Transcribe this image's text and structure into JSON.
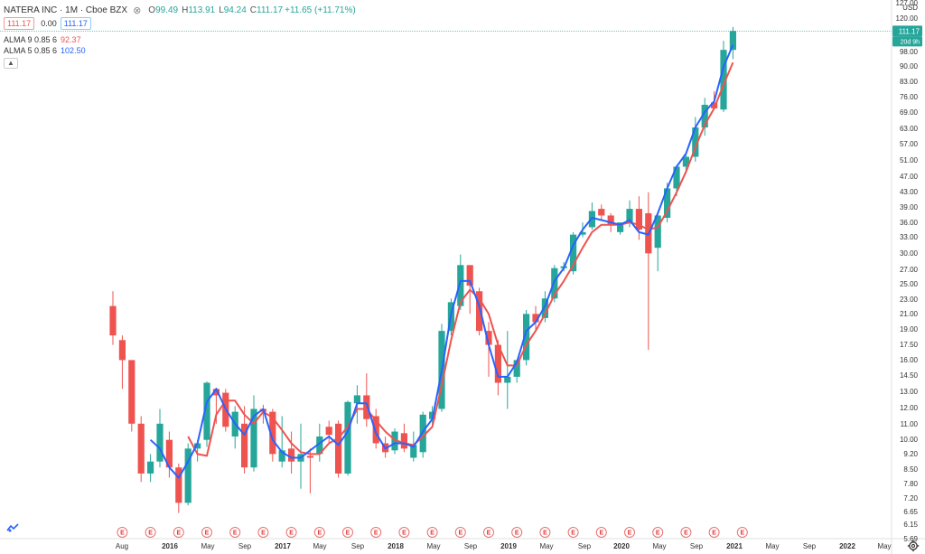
{
  "header": {
    "symbol_title": "NATERA INC · 1M · Cboe BZX",
    "bid": "111.17",
    "spread": "0.00",
    "ask": "111.17",
    "ohlc": [
      {
        "label": "O",
        "value": "99.49"
      },
      {
        "label": "H",
        "value": "113.91"
      },
      {
        "label": "L",
        "value": "94.24"
      },
      {
        "label": "C",
        "value": "111.17"
      },
      {
        "label": "",
        "value": "+11.65 (+11.71%)"
      }
    ]
  },
  "studies": [
    {
      "name": "ALMA 9 0.85 6",
      "value": "92.37",
      "color": "#ef5350"
    },
    {
      "name": "ALMA 5 0.85 6",
      "value": "102.50",
      "color": "#2962ff"
    }
  ],
  "price_axis": {
    "currency": "USD",
    "labels": [
      "127.00",
      "120.00",
      "110.00",
      "98.00",
      "90.00",
      "83.00",
      "76.00",
      "69.00",
      "63.00",
      "57.00",
      "51.00",
      "47.00",
      "43.00",
      "39.00",
      "36.00",
      "33.00",
      "30.00",
      "27.00",
      "25.00",
      "23.00",
      "21.00",
      "19.00",
      "17.50",
      "16.00",
      "14.50",
      "13.00",
      "12.00",
      "11.00",
      "10.00",
      "9.20",
      "8.50",
      "7.80",
      "7.20",
      "6.65",
      "6.15",
      "5.69"
    ],
    "last_price": "111.17",
    "countdown": "20d 9h"
  },
  "time_axis": {
    "labels": [
      "Aug",
      "2016",
      "May",
      "Sep",
      "2017",
      "May",
      "Sep",
      "2018",
      "May",
      "Sep",
      "2019",
      "May",
      "Sep",
      "2020",
      "May",
      "Sep",
      "2021",
      "May",
      "Sep",
      "2022",
      "May"
    ],
    "bold": [
      "2016",
      "2017",
      "2018",
      "2019",
      "2020",
      "2021",
      "2022"
    ]
  },
  "earnings_marker": "E",
  "colors": {
    "up": "#26a69a",
    "down": "#ef5350",
    "alma9": "#ef5350",
    "alma5": "#2962ff",
    "wick": "#666"
  },
  "chart_data": {
    "type": "candlestick",
    "scale": "log",
    "interval": "1M",
    "x_labels": [
      "2015-07",
      "2015-08",
      "2015-09",
      "2015-10",
      "2015-11",
      "2015-12",
      "2016-01",
      "2016-02",
      "2016-03",
      "2016-04",
      "2016-05",
      "2016-06",
      "2016-07",
      "2016-08",
      "2016-09",
      "2016-10",
      "2016-11",
      "2016-12",
      "2017-01",
      "2017-02",
      "2017-03",
      "2017-04",
      "2017-05",
      "2017-06",
      "2017-07",
      "2017-08",
      "2017-09",
      "2017-10",
      "2017-11",
      "2017-12",
      "2018-01",
      "2018-02",
      "2018-03",
      "2018-04",
      "2018-05",
      "2018-06",
      "2018-07",
      "2018-08",
      "2018-09",
      "2018-10",
      "2018-11",
      "2018-12",
      "2019-01",
      "2019-02",
      "2019-03",
      "2019-04",
      "2019-05",
      "2019-06",
      "2019-07",
      "2019-08",
      "2019-09",
      "2019-10",
      "2019-11",
      "2019-12",
      "2020-01",
      "2020-02",
      "2020-03",
      "2020-04",
      "2020-05",
      "2020-06",
      "2020-07",
      "2020-08",
      "2020-09",
      "2020-10",
      "2020-11",
      "2020-12",
      "2021-01"
    ],
    "ohlc": [
      [
        22.0,
        24.0,
        17.5,
        18.5
      ],
      [
        18.0,
        18.5,
        13.5,
        16.0
      ],
      [
        16.0,
        16.0,
        10.5,
        11.0
      ],
      [
        11.0,
        11.5,
        7.8,
        8.2
      ],
      [
        8.2,
        9.2,
        7.8,
        8.8
      ],
      [
        8.8,
        12.0,
        8.5,
        11.0
      ],
      [
        10.0,
        10.5,
        8.0,
        8.5
      ],
      [
        8.5,
        8.7,
        6.5,
        6.9
      ],
      [
        6.9,
        9.8,
        6.8,
        9.5
      ],
      [
        9.5,
        10.0,
        8.8,
        9.8
      ],
      [
        10.0,
        14.1,
        9.6,
        14.0
      ],
      [
        13.5,
        13.6,
        11.0,
        13.0
      ],
      [
        13.2,
        13.5,
        10.5,
        10.8
      ],
      [
        10.2,
        12.2,
        9.5,
        11.8
      ],
      [
        11.0,
        12.2,
        8.2,
        8.5
      ],
      [
        8.5,
        13.0,
        8.3,
        12.0
      ],
      [
        12.0,
        12.3,
        11.0,
        11.8
      ],
      [
        11.8,
        12.0,
        8.8,
        9.2
      ],
      [
        8.8,
        11.5,
        8.5,
        9.4
      ],
      [
        9.5,
        10.5,
        8.2,
        8.8
      ],
      [
        8.8,
        11.0,
        7.5,
        9.2
      ],
      [
        9.1,
        9.5,
        7.3,
        9.0
      ],
      [
        9.2,
        11.0,
        8.8,
        10.2
      ],
      [
        10.8,
        11.2,
        9.8,
        10.3
      ],
      [
        11.0,
        11.2,
        8.0,
        8.2
      ],
      [
        8.2,
        12.6,
        8.1,
        12.5
      ],
      [
        12.4,
        13.8,
        11.0,
        13.0
      ],
      [
        13.0,
        14.8,
        10.8,
        11.3
      ],
      [
        11.5,
        12.0,
        9.5,
        9.8
      ],
      [
        9.8,
        10.2,
        9.0,
        9.3
      ],
      [
        9.4,
        10.7,
        9.2,
        10.5
      ],
      [
        10.4,
        11.0,
        9.3,
        9.5
      ],
      [
        9.0,
        10.5,
        8.8,
        9.7
      ],
      [
        9.3,
        11.8,
        9.0,
        11.6
      ],
      [
        11.3,
        12.2,
        10.8,
        11.8
      ],
      [
        12.0,
        19.8,
        11.8,
        19.0
      ],
      [
        19.0,
        23.0,
        18.5,
        22.5
      ],
      [
        22.0,
        29.8,
        21.5,
        28.0
      ],
      [
        28.0,
        28.0,
        21.0,
        24.8
      ],
      [
        24.0,
        24.5,
        18.5,
        19.0
      ],
      [
        19.0,
        20.0,
        14.5,
        17.5
      ],
      [
        17.5,
        18.0,
        13.0,
        14.0
      ],
      [
        14.0,
        19.0,
        12.0,
        14.5
      ],
      [
        14.5,
        16.0,
        14.0,
        16.0
      ],
      [
        16.0,
        21.5,
        15.5,
        21.0
      ],
      [
        21.0,
        22.0,
        19.0,
        20.0
      ],
      [
        20.5,
        24.0,
        20.0,
        23.0
      ],
      [
        23.0,
        28.0,
        22.5,
        27.5
      ],
      [
        27.5,
        28.5,
        27.0,
        27.8
      ],
      [
        27.0,
        34.0,
        26.5,
        33.5
      ],
      [
        33.5,
        36.0,
        33.0,
        34.0
      ],
      [
        35.0,
        40.5,
        34.5,
        38.5
      ],
      [
        39.0,
        40.0,
        36.5,
        37.5
      ],
      [
        37.5,
        38.0,
        34.0,
        35.5
      ],
      [
        34.0,
        36.0,
        33.5,
        36.0
      ],
      [
        36.0,
        41.0,
        35.0,
        39.0
      ],
      [
        39.0,
        42.0,
        32.5,
        34.5
      ],
      [
        38.0,
        43.0,
        17.0,
        30.0
      ],
      [
        31.0,
        38.0,
        27.0,
        37.5
      ],
      [
        37.0,
        45.5,
        36.0,
        44.0
      ],
      [
        44.0,
        50.5,
        42.0,
        50.0
      ],
      [
        50.0,
        54.0,
        48.0,
        53.0
      ],
      [
        53.0,
        67.0,
        51.5,
        63.0
      ],
      [
        63.0,
        75.0,
        60.0,
        72.0
      ],
      [
        73.0,
        78.0,
        70.0,
        70.5
      ],
      [
        70.0,
        105.0,
        69.0,
        99.5
      ],
      [
        99.49,
        113.91,
        94.24,
        111.17
      ]
    ],
    "series": [
      {
        "name": "ALMA 9 0.85 6",
        "values": [
          null,
          null,
          null,
          null,
          null,
          null,
          null,
          null,
          10.2,
          9.2,
          9.1,
          11.6,
          12.6,
          12.6,
          11.6,
          11.0,
          11.8,
          11.4,
          10.6,
          9.8,
          9.3,
          9.2,
          9.2,
          9.8,
          10.1,
          10.8,
          12.0,
          12.0,
          11.2,
          10.5,
          10.0,
          9.8,
          9.7,
          10.2,
          10.8,
          13.8,
          18.0,
          22.5,
          24.2,
          23.0,
          21.0,
          17.5,
          15.5,
          15.5,
          17.5,
          19.0,
          21.0,
          23.5,
          25.5,
          28.0,
          31.0,
          34.0,
          35.5,
          35.5,
          35.5,
          36.0,
          35.5,
          34.5,
          35.0,
          38.5,
          43.0,
          48.5,
          56.0,
          64.0,
          70.5,
          81.0,
          92.37
        ]
      },
      {
        "name": "ALMA 5 0.85 6",
        "values": [
          null,
          null,
          null,
          null,
          10.0,
          9.5,
          8.5,
          8.0,
          8.8,
          9.8,
          12.5,
          13.5,
          12.0,
          11.0,
          10.3,
          11.5,
          12.0,
          10.0,
          9.3,
          9.0,
          9.0,
          9.4,
          9.8,
          10.2,
          9.7,
          10.5,
          12.4,
          12.4,
          10.4,
          9.5,
          9.8,
          9.8,
          9.6,
          10.5,
          11.3,
          15.0,
          21.0,
          25.5,
          25.5,
          22.0,
          17.5,
          14.5,
          14.5,
          15.8,
          19.0,
          20.0,
          22.0,
          25.5,
          27.5,
          31.5,
          34.5,
          37.0,
          36.5,
          36.0,
          35.5,
          36.5,
          34.0,
          33.5,
          38.0,
          44.0,
          50.0,
          54.0,
          63.0,
          69.0,
          73.5,
          90.0,
          102.5
        ]
      }
    ],
    "earnings_months": [
      "2015-08",
      "2015-11",
      "2016-02",
      "2016-05",
      "2016-08",
      "2016-11",
      "2017-02",
      "2017-05",
      "2017-08",
      "2017-11",
      "2018-02",
      "2018-05",
      "2018-08",
      "2018-11",
      "2019-02",
      "2019-05",
      "2019-08",
      "2019-11",
      "2020-02",
      "2020-05",
      "2020-08",
      "2020-11",
      "2021-02"
    ]
  }
}
